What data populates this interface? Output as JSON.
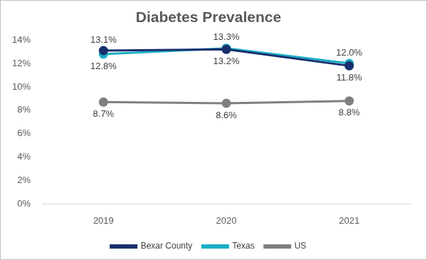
{
  "chart_data": {
    "type": "line",
    "title": "Diabetes Prevalence",
    "categories": [
      "2019",
      "2020",
      "2021"
    ],
    "series": [
      {
        "name": "Bexar County",
        "color": "#1a2f6e",
        "values": [
          13.1,
          13.2,
          11.8
        ],
        "value_labels": [
          "13.1%",
          "13.2%",
          "11.8%"
        ]
      },
      {
        "name": "Texas",
        "color": "#1aaec4",
        "values": [
          12.8,
          13.3,
          12.0
        ],
        "value_labels": [
          "12.8%",
          "13.3%",
          "12.0%"
        ]
      },
      {
        "name": "US",
        "color": "#7f7f7f",
        "values": [
          8.7,
          8.6,
          8.8
        ],
        "value_labels": [
          "8.7%",
          "8.6%",
          "8.8%"
        ]
      }
    ],
    "ylim": [
      0,
      14
    ],
    "yticks": [
      {
        "value": 0,
        "label": "0%"
      },
      {
        "value": 2,
        "label": "2%"
      },
      {
        "value": 4,
        "label": "4%"
      },
      {
        "value": 6,
        "label": "6%"
      },
      {
        "value": 8,
        "label": "8%"
      },
      {
        "value": 10,
        "label": "10%"
      },
      {
        "value": 12,
        "label": "12%"
      },
      {
        "value": 14,
        "label": "14%"
      }
    ],
    "grid": false,
    "legend": "bottom",
    "data_labels": true,
    "marker": "circle"
  }
}
